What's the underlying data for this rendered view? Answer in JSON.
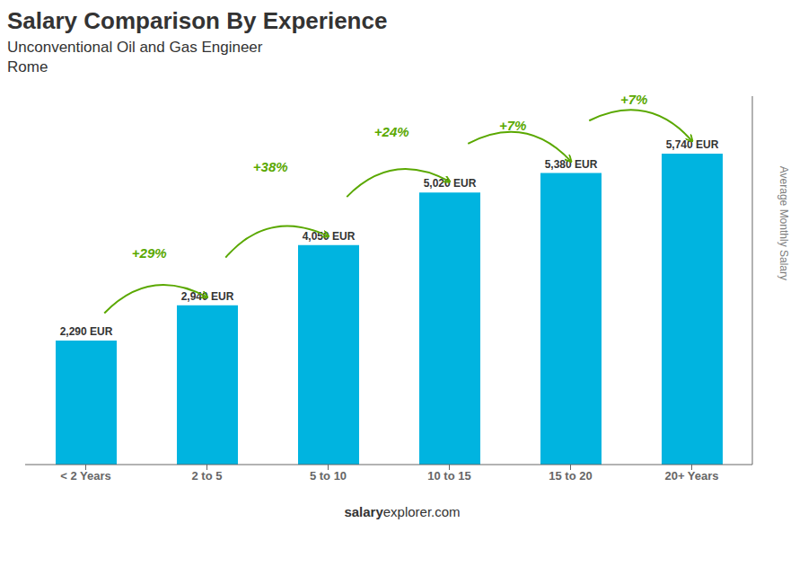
{
  "chart_data": {
    "type": "bar",
    "title": "Salary Comparison By Experience",
    "subtitle": [
      "Unconventional Oil and Gas Engineer",
      "Rome"
    ],
    "ylabel": "Average Monthly Salary",
    "footer": [
      "salary",
      "explorer.com"
    ],
    "categories": [
      "< 2 Years",
      "2 to 5",
      "5 to 10",
      "10 to 15",
      "15 to 20",
      "20+ Years"
    ],
    "values": [
      2290,
      2940,
      4050,
      5020,
      5380,
      5740
    ],
    "value_labels": [
      "2,290 EUR",
      "2,940 EUR",
      "4,050 EUR",
      "5,020 EUR",
      "5,380 EUR",
      "5,740 EUR"
    ],
    "data_labels": true,
    "annotations": [
      "+29%",
      "+38%",
      "+24%",
      "+7%",
      "+7%"
    ],
    "color": "#00B4E0",
    "ylim": [
      0,
      6800
    ],
    "grid": false,
    "tick_labels": "x"
  }
}
